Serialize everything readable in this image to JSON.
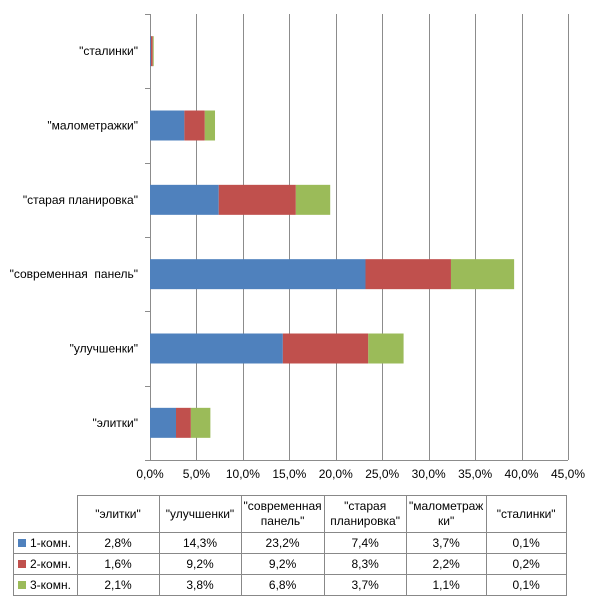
{
  "chart_data": {
    "type": "bar",
    "orientation": "horizontal",
    "stacked": true,
    "categories": [
      "\"элитки\"",
      "\"улучшенки\"",
      "\"современная  панель\"",
      "\"старая планировка\"",
      "\"малометражки\"",
      "\"сталинки\""
    ],
    "table_headers": [
      "\"элитки\"",
      "\"улучшенки\"",
      "\"современная панель\"",
      "\"старая планировка\"",
      "\"малометраж ки\"",
      "\"сталинки\""
    ],
    "series": [
      {
        "name": "1-комн.",
        "color": "#4f81bd",
        "values": [
          2.8,
          14.3,
          23.2,
          7.4,
          3.7,
          0.1
        ],
        "labels": [
          "2,8%",
          "14,3%",
          "23,2%",
          "7,4%",
          "3,7%",
          "0,1%"
        ]
      },
      {
        "name": "2-комн.",
        "color": "#c0504d",
        "values": [
          1.6,
          9.2,
          9.2,
          8.3,
          2.2,
          0.2
        ],
        "labels": [
          "1,6%",
          "9,2%",
          "9,2%",
          "8,3%",
          "2,2%",
          "0,2%"
        ]
      },
      {
        "name": "3-комн.",
        "color": "#9bbb59",
        "values": [
          2.1,
          3.8,
          6.8,
          3.7,
          1.1,
          0.1
        ],
        "labels": [
          "2,1%",
          "3,8%",
          "6,8%",
          "3,7%",
          "1,1%",
          "0,1%"
        ]
      }
    ],
    "xlim": [
      0,
      45
    ],
    "xticks": [
      0,
      5,
      10,
      15,
      20,
      25,
      30,
      35,
      40,
      45
    ],
    "xtick_labels": [
      "0,0%",
      "5,0%",
      "10,0%",
      "15,0%",
      "20,0%",
      "25,0%",
      "30,0%",
      "35,0%",
      "40,0%",
      "45,0%"
    ],
    "grid": "vertical",
    "legend": "data-table"
  }
}
